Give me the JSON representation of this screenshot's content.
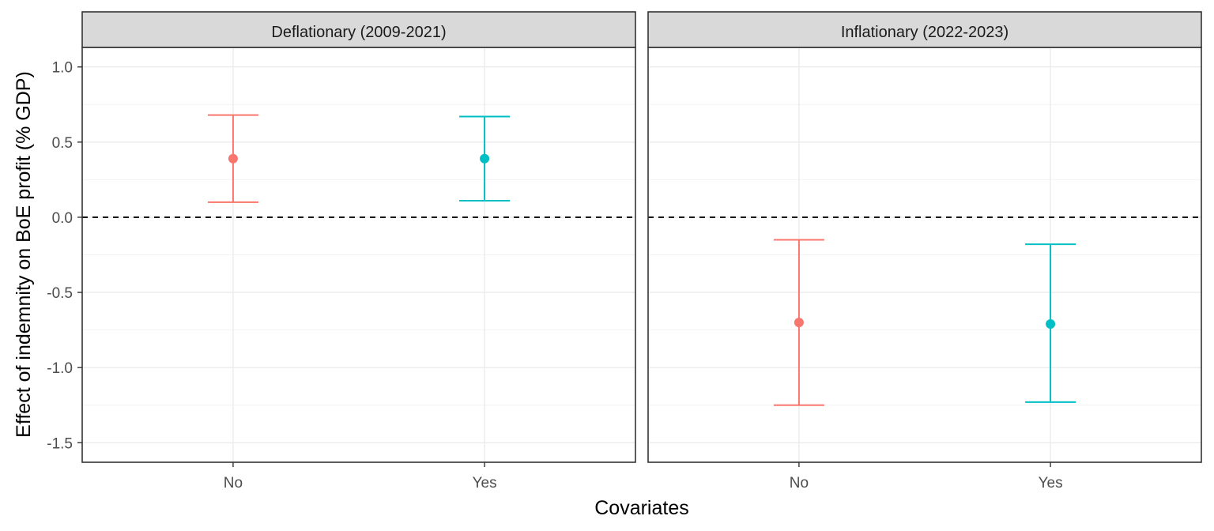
{
  "chart_data": {
    "type": "errorbar",
    "xlabel": "Covariates",
    "ylabel": "Effect of indemnity on BoE profit (% GDP)",
    "categories": [
      "No",
      "Yes"
    ],
    "ylim": [
      -1.63,
      1.13
    ],
    "yticks": [
      {
        "value": 1.0,
        "label": "1.0"
      },
      {
        "value": 0.5,
        "label": "0.5"
      },
      {
        "value": 0.0,
        "label": "0.0"
      },
      {
        "value": -0.5,
        "label": "-0.5"
      },
      {
        "value": -1.0,
        "label": "-1.0"
      },
      {
        "value": -1.5,
        "label": "-1.5"
      }
    ],
    "reference_line": {
      "value": 0,
      "style": "dashed"
    },
    "grid": true,
    "legend": "none",
    "colors": {
      "No": "#F8766D",
      "Yes": "#00BFC4"
    },
    "panels": [
      {
        "title": "Deflationary (2009-2021)",
        "points": [
          {
            "category": "No",
            "estimate": 0.39,
            "lower": 0.1,
            "upper": 0.68
          },
          {
            "category": "Yes",
            "estimate": 0.39,
            "lower": 0.11,
            "upper": 0.67
          }
        ]
      },
      {
        "title": "Inflationary (2022-2023)",
        "points": [
          {
            "category": "No",
            "estimate": -0.7,
            "lower": -1.25,
            "upper": -0.15
          },
          {
            "category": "Yes",
            "estimate": -0.71,
            "lower": -1.23,
            "upper": -0.18
          }
        ]
      }
    ]
  }
}
